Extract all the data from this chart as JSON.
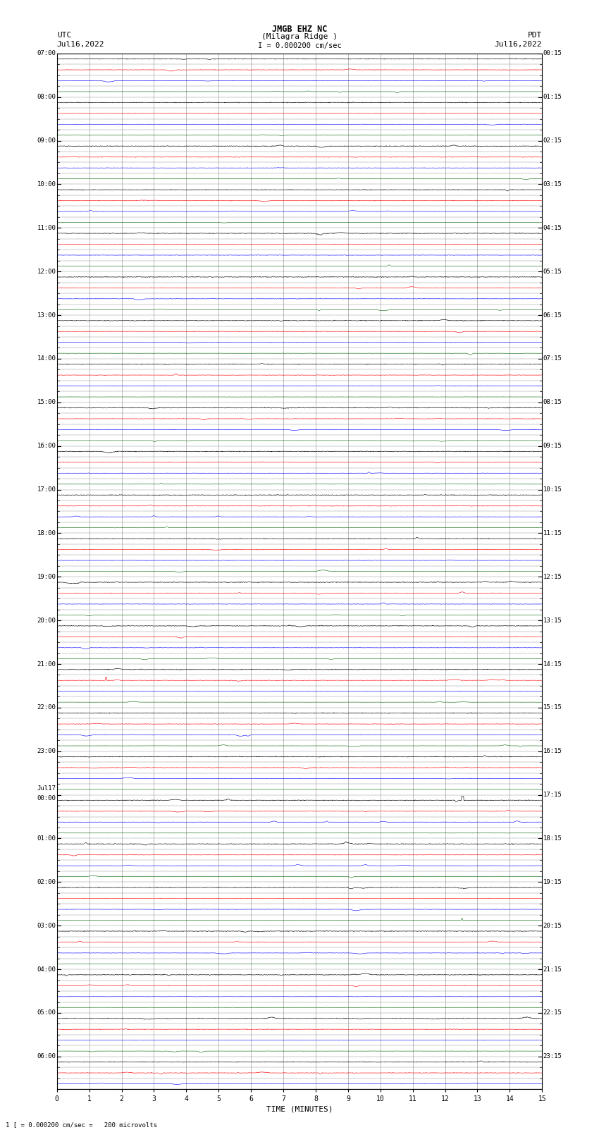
{
  "title_line1": "JMGB EHZ NC",
  "title_line2": "(Milagra Ridge )",
  "scale_label": "I = 0.000200 cm/sec",
  "bottom_label": "1 [ = 0.000200 cm/sec =   200 microvolts",
  "utc_label": "UTC",
  "pdt_label": "PDT",
  "date_left": "Jul16,2022",
  "date_right": "Jul16,2022",
  "xlabel": "TIME (MINUTES)",
  "utc_times": [
    "07:00",
    "",
    "",
    "",
    "08:00",
    "",
    "",
    "",
    "09:00",
    "",
    "",
    "",
    "10:00",
    "",
    "",
    "",
    "11:00",
    "",
    "",
    "",
    "12:00",
    "",
    "",
    "",
    "13:00",
    "",
    "",
    "",
    "14:00",
    "",
    "",
    "",
    "15:00",
    "",
    "",
    "",
    "16:00",
    "",
    "",
    "",
    "17:00",
    "",
    "",
    "",
    "18:00",
    "",
    "",
    "",
    "19:00",
    "",
    "",
    "",
    "20:00",
    "",
    "",
    "",
    "21:00",
    "",
    "",
    "",
    "22:00",
    "",
    "",
    "",
    "23:00",
    "",
    "",
    "",
    "Jul17|00:00",
    "",
    "",
    "",
    "01:00",
    "",
    "",
    "",
    "02:00",
    "",
    "",
    "",
    "03:00",
    "",
    "",
    "",
    "04:00",
    "",
    "",
    "",
    "05:00",
    "",
    "",
    "",
    "06:00",
    "",
    ""
  ],
  "pdt_times": [
    "00:15",
    "",
    "",
    "",
    "01:15",
    "",
    "",
    "",
    "02:15",
    "",
    "",
    "",
    "03:15",
    "",
    "",
    "",
    "04:15",
    "",
    "",
    "",
    "05:15",
    "",
    "",
    "",
    "06:15",
    "",
    "",
    "",
    "07:15",
    "",
    "",
    "",
    "08:15",
    "",
    "",
    "",
    "09:15",
    "",
    "",
    "",
    "10:15",
    "",
    "",
    "",
    "11:15",
    "",
    "",
    "",
    "12:15",
    "",
    "",
    "",
    "13:15",
    "",
    "",
    "",
    "14:15",
    "",
    "",
    "",
    "15:15",
    "",
    "",
    "",
    "16:15",
    "",
    "",
    "",
    "17:15",
    "",
    "",
    "",
    "18:15",
    "",
    "",
    "",
    "19:15",
    "",
    "",
    "",
    "20:15",
    "",
    "",
    "",
    "21:15",
    "",
    "",
    "",
    "22:15",
    "",
    "",
    "",
    "23:15",
    "",
    ""
  ],
  "num_rows": 95,
  "colors_cycle": [
    "black",
    "red",
    "blue",
    "darkgreen"
  ],
  "bg_color": "white",
  "grid_color": "#888888",
  "x_min": 0,
  "x_max": 15,
  "x_ticks": [
    0,
    1,
    2,
    3,
    4,
    5,
    6,
    7,
    8,
    9,
    10,
    11,
    12,
    13,
    14,
    15
  ],
  "figsize": [
    8.5,
    16.13
  ],
  "dpi": 100,
  "noise_base": 0.012,
  "noise_active": 0.025
}
